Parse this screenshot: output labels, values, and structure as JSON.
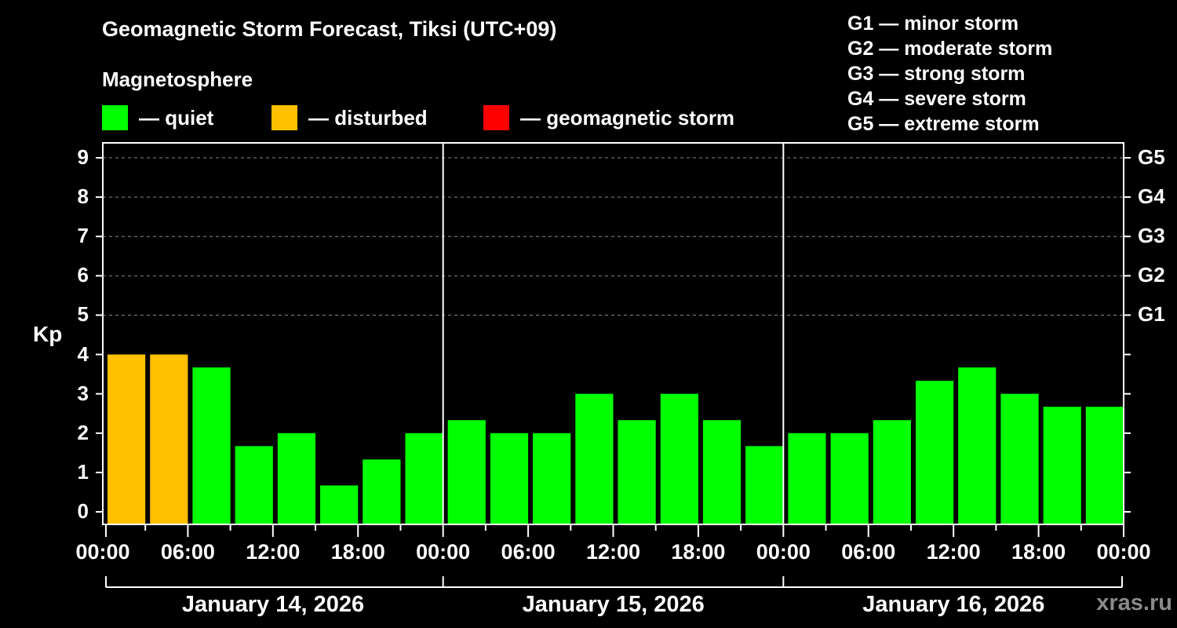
{
  "title": "Geomagnetic Storm Forecast, Tiksi (UTC+09)",
  "magnetosphere_label": "Magnetosphere",
  "legend": [
    {
      "color": "#00ff00",
      "label": "— quiet"
    },
    {
      "color": "#ffc000",
      "label": "— disturbed"
    },
    {
      "color": "#ff0000",
      "label": "— geomagnetic storm"
    }
  ],
  "storm_scale": [
    "G1 — minor storm",
    "G2 — moderate storm",
    "G3 — strong storm",
    "G4 — severe storm",
    "G5 — extreme storm"
  ],
  "watermark": "xras.ru",
  "chart_data": {
    "type": "bar",
    "title": "Geomagnetic Storm Forecast, Tiksi (UTC+09)",
    "xlabel": "",
    "ylabel": "Kp",
    "ylim": [
      0,
      9
    ],
    "yticks": [
      0,
      1,
      2,
      3,
      4,
      5,
      6,
      7,
      8,
      9
    ],
    "right_axis_labels": [
      {
        "kp": 5,
        "label": "G1"
      },
      {
        "kp": 6,
        "label": "G2"
      },
      {
        "kp": 7,
        "label": "G3"
      },
      {
        "kp": 8,
        "label": "G4"
      },
      {
        "kp": 9,
        "label": "G5"
      }
    ],
    "grid": "dashed horizontal at Kp 5-9",
    "xtick_labels": [
      "00:00",
      "06:00",
      "12:00",
      "18:00",
      "00:00",
      "06:00",
      "12:00",
      "18:00",
      "00:00",
      "06:00",
      "12:00",
      "18:00",
      "00:00"
    ],
    "days": [
      "January 14, 2026",
      "January 15, 2026",
      "January 16, 2026"
    ],
    "interval_hours": 3,
    "categories": [
      "Jan 14 00-03",
      "Jan 14 03-06",
      "Jan 14 06-09",
      "Jan 14 09-12",
      "Jan 14 12-15",
      "Jan 14 15-18",
      "Jan 14 18-21",
      "Jan 14 21-24",
      "Jan 15 00-03",
      "Jan 15 03-06",
      "Jan 15 06-09",
      "Jan 15 09-12",
      "Jan 15 12-15",
      "Jan 15 15-18",
      "Jan 15 18-21",
      "Jan 15 21-24",
      "Jan 16 00-03",
      "Jan 16 03-06",
      "Jan 16 06-09",
      "Jan 16 09-12",
      "Jan 16 12-15",
      "Jan 16 15-18",
      "Jan 16 18-21",
      "Jan 16 21-24"
    ],
    "values": [
      4.0,
      4.0,
      3.67,
      1.67,
      2.0,
      0.67,
      1.33,
      2.0,
      2.33,
      2.0,
      2.0,
      3.0,
      2.33,
      3.0,
      2.33,
      1.67,
      2.0,
      2.0,
      2.33,
      3.33,
      3.67,
      3.0,
      2.67,
      2.67
    ],
    "status": [
      "disturbed",
      "disturbed",
      "quiet",
      "quiet",
      "quiet",
      "quiet",
      "quiet",
      "quiet",
      "quiet",
      "quiet",
      "quiet",
      "quiet",
      "quiet",
      "quiet",
      "quiet",
      "quiet",
      "quiet",
      "quiet",
      "quiet",
      "quiet",
      "quiet",
      "quiet",
      "quiet",
      "quiet"
    ],
    "colors": {
      "quiet": "#00ff00",
      "disturbed": "#ffc000",
      "storm": "#ff0000"
    },
    "legend_position": "top"
  }
}
